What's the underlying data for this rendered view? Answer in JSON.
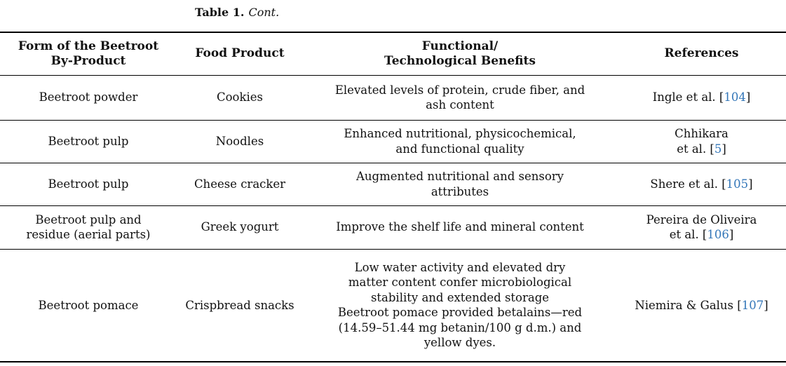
{
  "caption": {
    "label": "Table 1.",
    "cont": "Cont."
  },
  "colors": {
    "link_blue": "#3376b8",
    "text": "#111111",
    "rule": "#000000"
  },
  "table": {
    "headers": {
      "form": "Form of the Beetroot\nBy-Product",
      "product": "Food Product",
      "benefits": "Functional/\nTechnological Benefits",
      "references": "References"
    },
    "rows": [
      {
        "form": "Beetroot powder",
        "product": "Cookies",
        "benefits": "Elevated levels of protein, crude fiber, and\nash content",
        "ref_pre": "Ingle et al. [",
        "ref_num": "104",
        "ref_close": "]"
      },
      {
        "form": "Beetroot pulp",
        "product": "Noodles",
        "benefits": "Enhanced nutritional, physicochemical,\nand functional quality",
        "ref_pre": "Chhikara\net al. [",
        "ref_num": "5",
        "ref_close": "]"
      },
      {
        "form": "Beetroot pulp",
        "product": "Cheese cracker",
        "benefits": "Augmented nutritional and sensory\nattributes",
        "ref_pre": "Shere et al. [",
        "ref_num": "105",
        "ref_close": "]"
      },
      {
        "form": "Beetroot pulp and\nresidue (aerial parts)",
        "product": "Greek yogurt",
        "benefits": "Improve the shelf life and mineral content",
        "ref_pre": "Pereira de Oliveira\net al. [",
        "ref_num": "106",
        "ref_close": "]"
      },
      {
        "form": "Beetroot pomace",
        "product": "Crispbread snacks",
        "benefits": "Low water activity and elevated dry\nmatter content confer microbiological\nstability and extended storage\nBeetroot pomace provided betalains—red\n(14.59–51.44 mg betanin/100 g d.m.) and\nyellow dyes.",
        "ref_pre": "Niemira & Galus [",
        "ref_num": "107",
        "ref_close": "]"
      }
    ]
  }
}
